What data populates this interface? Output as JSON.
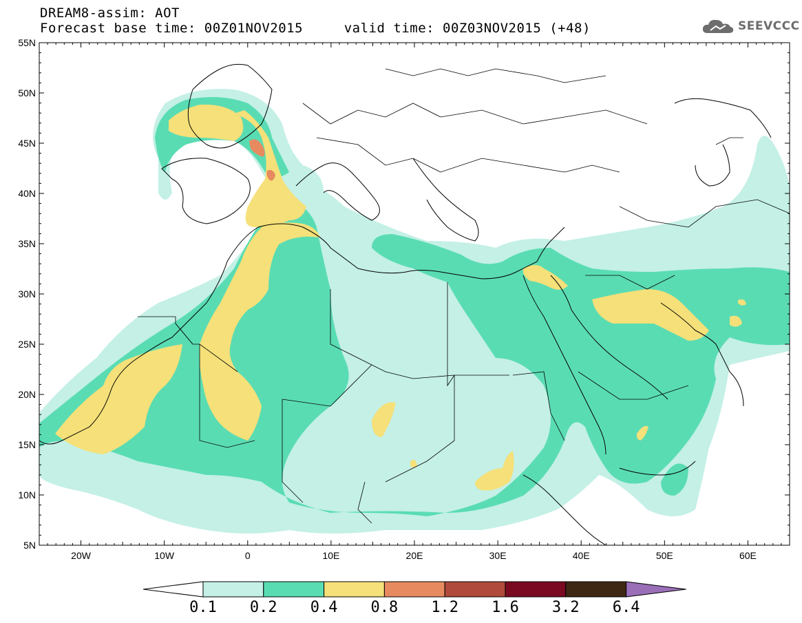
{
  "title": {
    "line1": "DREAM8-assim: AOT",
    "line2": "Forecast base time: 00Z01NOV2015     valid time: 00Z03NOV2015 (+48)"
  },
  "logo": {
    "text": "SEEVCCC",
    "icon": "cloud-icon"
  },
  "map": {
    "lat_labels": [
      "55N",
      "50N",
      "45N",
      "40N",
      "35N",
      "30N",
      "25N",
      "20N",
      "15N",
      "10N",
      "5N"
    ],
    "lon_labels": [
      "20W",
      "10W",
      "0",
      "10E",
      "20E",
      "30E",
      "40E",
      "50E",
      "60E"
    ],
    "lat_range": [
      5,
      55
    ],
    "lon_range": [
      -25,
      65
    ]
  },
  "colorbar": {
    "labels": [
      "0.1",
      "0.2",
      "0.4",
      "0.8",
      "1.2",
      "1.6",
      "3.2",
      "6.4"
    ],
    "colors": [
      "#ffffff",
      "#c4f0e6",
      "#5adcb3",
      "#f5e079",
      "#e88a60",
      "#b04a3c",
      "#7a0a22",
      "#3e2814",
      "#9a6fb8"
    ]
  }
}
